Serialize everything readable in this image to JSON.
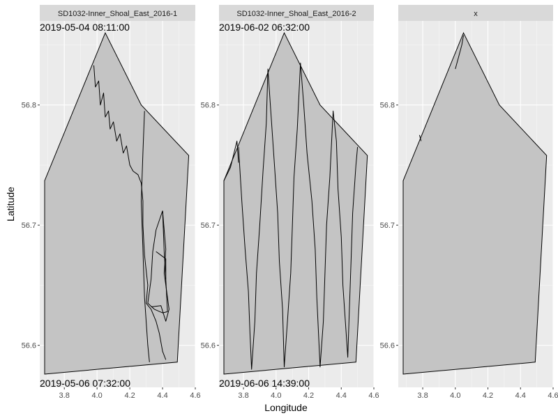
{
  "chart_data": {
    "type": "line",
    "facet_layout": "1x3",
    "xlabel": "Longitude",
    "ylabel": "Latitude",
    "xlim": [
      3.65,
      4.6
    ],
    "ylim": [
      56.565,
      56.87
    ],
    "x_ticks": [
      3.8,
      4.0,
      4.2,
      4.4,
      4.6
    ],
    "x_tick_labels": [
      "3.8",
      "4.0",
      "4.2",
      "4.4",
      "4.6"
    ],
    "y_ticks": [
      56.6,
      56.7,
      56.8
    ],
    "y_tick_labels": [
      "56.6",
      "56.7",
      "56.8"
    ],
    "grid": true,
    "hull": [
      [
        3.68,
        56.576
      ],
      [
        4.49,
        56.586
      ],
      [
        4.56,
        56.758
      ],
      [
        4.27,
        56.8
      ],
      [
        4.05,
        56.86
      ],
      [
        3.68,
        56.737
      ]
    ],
    "panels": [
      {
        "strip": "SD1032-Inner_Shoal_East_2016-1",
        "start_label": "2019-05-04 08:11:00",
        "end_label": "2019-05-06 07:32:00",
        "tracks": [
          [
            [
              3.98,
              56.833
            ],
            [
              3.99,
              56.815
            ],
            [
              4.01,
              56.82
            ],
            [
              4.02,
              56.8
            ],
            [
              4.04,
              56.81
            ],
            [
              4.05,
              56.79
            ],
            [
              4.07,
              56.795
            ],
            [
              4.08,
              56.78
            ],
            [
              4.1,
              56.786
            ],
            [
              4.12,
              56.77
            ],
            [
              4.14,
              56.776
            ],
            [
              4.16,
              56.76
            ],
            [
              4.18,
              56.766
            ],
            [
              4.2,
              56.75
            ],
            [
              4.22,
              56.745
            ],
            [
              4.25,
              56.742
            ],
            [
              4.27,
              56.735
            ],
            [
              4.28,
              56.72
            ],
            [
              4.28,
              56.7
            ],
            [
              4.29,
              56.675
            ],
            [
              4.31,
              56.65
            ],
            [
              4.3,
              56.635
            ],
            [
              4.33,
              56.63
            ],
            [
              4.36,
              56.62
            ],
            [
              4.38,
              56.61
            ],
            [
              4.4,
              56.595
            ],
            [
              4.42,
              56.588
            ]
          ],
          [
            [
              4.29,
              56.795
            ],
            [
              4.28,
              56.76
            ],
            [
              4.27,
              56.72
            ],
            [
              4.28,
              56.68
            ],
            [
              4.29,
              56.64
            ],
            [
              4.31,
              56.6
            ],
            [
              4.32,
              56.586
            ]
          ],
          [
            [
              4.4,
              56.712
            ],
            [
              4.36,
              56.696
            ],
            [
              4.34,
              56.678
            ],
            [
              4.33,
              56.655
            ],
            [
              4.31,
              56.635
            ],
            [
              4.35,
              56.63
            ],
            [
              4.4,
              56.627
            ],
            [
              4.43,
              56.628
            ],
            [
              4.42,
              56.655
            ],
            [
              4.41,
              56.678
            ],
            [
              4.4,
              56.712
            ]
          ],
          [
            [
              4.36,
              56.678
            ],
            [
              4.39,
              56.675
            ],
            [
              4.42,
              56.672
            ],
            [
              4.42,
              56.655
            ]
          ],
          [
            [
              4.4,
              56.712
            ],
            [
              4.42,
              56.68
            ],
            [
              4.41,
              56.66
            ],
            [
              4.43,
              56.64
            ],
            [
              4.44,
              56.63
            ],
            [
              4.42,
              56.62
            ],
            [
              4.39,
              56.633
            ],
            [
              4.33,
              56.632
            ]
          ]
        ]
      },
      {
        "strip": "SD1032-Inner_Shoal_East_2016-2",
        "start_label": "2019-06-02 06:32:00",
        "end_label": "2019-06-06 14:39:00",
        "tracks": [
          [
            [
              3.68,
              56.737
            ],
            [
              3.72,
              56.748
            ],
            [
              3.76,
              56.77
            ],
            [
              3.77,
              56.752
            ]
          ],
          [
            [
              3.77,
              56.765
            ],
            [
              3.79,
              56.72
            ],
            [
              3.81,
              56.68
            ],
            [
              3.83,
              56.645
            ],
            [
              3.84,
              56.61
            ],
            [
              3.85,
              56.58
            ],
            [
              3.87,
              56.62
            ],
            [
              3.88,
              56.66
            ],
            [
              3.9,
              56.7
            ],
            [
              3.92,
              56.745
            ],
            [
              3.94,
              56.785
            ],
            [
              3.95,
              56.83
            ],
            [
              3.97,
              56.79
            ],
            [
              3.99,
              56.75
            ],
            [
              4.01,
              56.71
            ],
            [
              4.02,
              56.67
            ],
            [
              4.04,
              56.63
            ],
            [
              4.05,
              56.582
            ],
            [
              4.07,
              56.62
            ],
            [
              4.09,
              56.66
            ],
            [
              4.1,
              56.7
            ],
            [
              4.11,
              56.74
            ],
            [
              4.13,
              56.78
            ],
            [
              4.15,
              56.835
            ],
            [
              4.17,
              56.8
            ],
            [
              4.19,
              56.76
            ],
            [
              4.22,
              56.72
            ],
            [
              4.24,
              56.68
            ],
            [
              4.25,
              56.64
            ],
            [
              4.27,
              56.582
            ],
            [
              4.29,
              56.62
            ],
            [
              4.3,
              56.66
            ],
            [
              4.31,
              56.7
            ],
            [
              4.33,
              56.74
            ],
            [
              4.35,
              56.795
            ],
            [
              4.37,
              56.77
            ],
            [
              4.38,
              56.73
            ],
            [
              4.4,
              56.69
            ],
            [
              4.41,
              56.65
            ],
            [
              4.43,
              56.61
            ],
            [
              4.44,
              56.59
            ],
            [
              4.45,
              56.63
            ],
            [
              4.46,
              56.67
            ],
            [
              4.47,
              56.71
            ],
            [
              4.49,
              56.75
            ],
            [
              4.5,
              56.765
            ]
          ]
        ]
      },
      {
        "strip": "x",
        "start_label": "",
        "end_label": "",
        "tracks": [
          [
            [
              4.0,
              56.83
            ],
            [
              4.02,
              56.84
            ],
            [
              4.04,
              56.85
            ],
            [
              4.05,
              56.858
            ]
          ],
          [
            [
              3.78,
              56.775
            ],
            [
              3.79,
              56.77
            ]
          ]
        ]
      }
    ]
  }
}
